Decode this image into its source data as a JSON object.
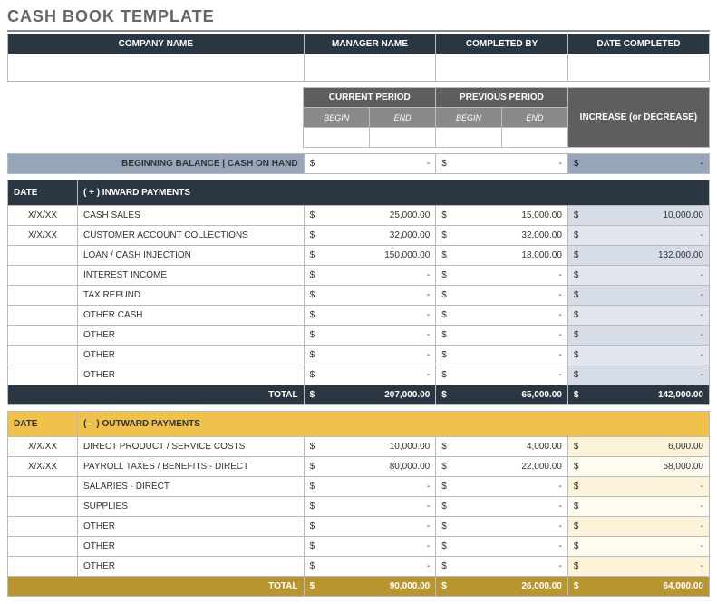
{
  "title": "CASH BOOK TEMPLATE",
  "top_headers": {
    "company": "COMPANY NAME",
    "manager": "MANAGER NAME",
    "completed_by": "COMPLETED BY",
    "date_completed": "DATE COMPLETED"
  },
  "period_headers": {
    "current": "CURRENT PERIOD",
    "previous": "PREVIOUS PERIOD",
    "begin": "BEGIN",
    "end": "END",
    "increase": "INCREASE (or DECREASE)"
  },
  "beginning_balance_label": "BEGINNING BALANCE  |  CASH ON HAND",
  "beginning_balance": {
    "cur": "-",
    "prev": "-",
    "inc": "-"
  },
  "col_date": "DATE",
  "inward": {
    "title": "( + )  INWARD PAYMENTS",
    "rows": [
      {
        "date": "X/X/XX",
        "label": "CASH SALES",
        "cur": "25,000.00",
        "prev": "15,000.00",
        "inc": "10,000.00"
      },
      {
        "date": "X/X/XX",
        "label": "CUSTOMER ACCOUNT COLLECTIONS",
        "cur": "32,000.00",
        "prev": "32,000.00",
        "inc": "-"
      },
      {
        "date": "",
        "label": "LOAN / CASH INJECTION",
        "cur": "150,000.00",
        "prev": "18,000.00",
        "inc": "132,000.00"
      },
      {
        "date": "",
        "label": "INTEREST INCOME",
        "cur": "-",
        "prev": "-",
        "inc": "-"
      },
      {
        "date": "",
        "label": "TAX REFUND",
        "cur": "-",
        "prev": "-",
        "inc": "-"
      },
      {
        "date": "",
        "label": "OTHER CASH",
        "cur": "-",
        "prev": "-",
        "inc": "-"
      },
      {
        "date": "",
        "label": "OTHER",
        "cur": "-",
        "prev": "-",
        "inc": "-"
      },
      {
        "date": "",
        "label": "OTHER",
        "cur": "-",
        "prev": "-",
        "inc": "-"
      },
      {
        "date": "",
        "label": "OTHER",
        "cur": "-",
        "prev": "-",
        "inc": "-"
      }
    ],
    "total_label": "TOTAL",
    "total": {
      "cur": "207,000.00",
      "prev": "65,000.00",
      "inc": "142,000.00"
    }
  },
  "outward": {
    "title": "( – )  OUTWARD PAYMENTS",
    "rows": [
      {
        "date": "X/X/XX",
        "label": "DIRECT PRODUCT / SERVICE COSTS",
        "cur": "10,000.00",
        "prev": "4,000.00",
        "inc": "6,000.00"
      },
      {
        "date": "X/X/XX",
        "label": "PAYROLL TAXES / BENEFITS - DIRECT",
        "cur": "80,000.00",
        "prev": "22,000.00",
        "inc": "58,000.00"
      },
      {
        "date": "",
        "label": "SALARIES - DIRECT",
        "cur": "-",
        "prev": "-",
        "inc": "-"
      },
      {
        "date": "",
        "label": "SUPPLIES",
        "cur": "-",
        "prev": "-",
        "inc": "-"
      },
      {
        "date": "",
        "label": "OTHER",
        "cur": "-",
        "prev": "-",
        "inc": "-"
      },
      {
        "date": "",
        "label": "OTHER",
        "cur": "-",
        "prev": "-",
        "inc": "-"
      },
      {
        "date": "",
        "label": "OTHER",
        "cur": "-",
        "prev": "-",
        "inc": "-"
      }
    ],
    "total_label": "TOTAL",
    "total": {
      "cur": "90,000.00",
      "prev": "26,000.00",
      "inc": "64,000.00"
    }
  },
  "colors": {
    "dark": "#2a3642",
    "med": "#5e5e5e",
    "light_grey": "#8a8a8a",
    "steel": "#97a6ba",
    "steel_lt": "#d6dde8",
    "gold": "#f0c14b",
    "gold_dk": "#b89530",
    "gold_lt": "#fdf3d9",
    "border": "#bbb"
  }
}
